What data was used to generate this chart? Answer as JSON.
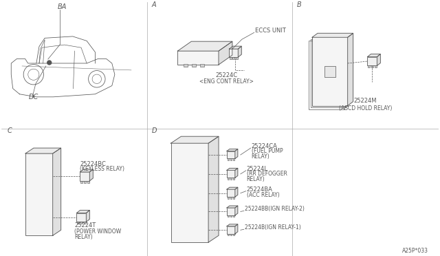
{
  "bg_color": "#ffffff",
  "line_color": "#555555",
  "border_color": "#aaaaaa",
  "part_number": "A25P*033",
  "sections": {
    "A": {
      "label": "A",
      "part": "25224C",
      "relay_name": "<ENG CONT RELAY>",
      "eccs_label": "ECCS UNIT"
    },
    "B": {
      "label": "B",
      "part": "25224M",
      "relay_name": "(ASCD HOLD RELAY)"
    },
    "C": {
      "label": "C",
      "part1": "25224BC",
      "name1": "(KEYLESS RELAY)",
      "part2": "25224T",
      "name2": "(POWER WINDOW\nRELAY)"
    },
    "D": {
      "label": "D",
      "relays": [
        {
          "part": "25224CA",
          "name": "(FUEL PUMP\nRELAY)"
        },
        {
          "part": "25224L",
          "name": "(RR DEFOGGER\nRELAY)"
        },
        {
          "part": "25224BA",
          "name": "(ACC RELAY)"
        },
        {
          "part": "25224BB",
          "name": "(IGN RELAY-2)"
        },
        {
          "part": "25224B",
          "name": "(IGN RELAY-1)"
        }
      ]
    }
  },
  "dividers": {
    "vx1": 213,
    "vx2": 426,
    "hy": 186
  },
  "font_sizes": {
    "label": 7,
    "part": 6,
    "small": 5.5,
    "section": 7
  }
}
